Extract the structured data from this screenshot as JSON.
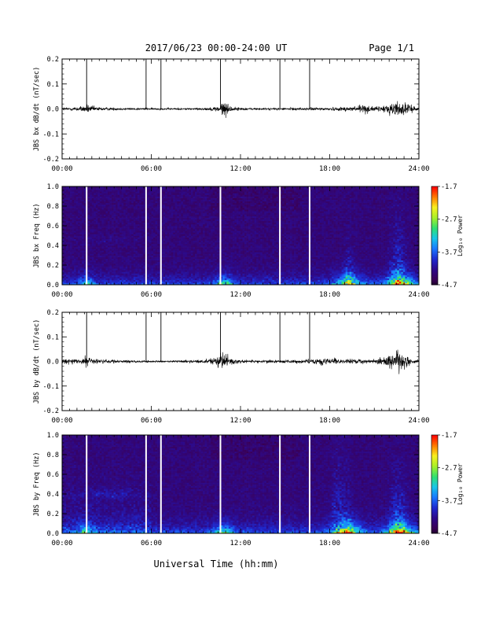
{
  "header": {
    "title": "2017/06/23  00:00-24:00 UT",
    "page": "Page 1/1"
  },
  "footer": {
    "xlabel": "Universal Time (hh:mm)"
  },
  "colors": {
    "trace": "#000000",
    "marker": "#000000",
    "gap": "#ffffff",
    "spectrogram_colormap": [
      "#000000",
      "#3a0055",
      "#2d0a8a",
      "#1f2ad0",
      "#1a78ff",
      "#18c6e8",
      "#30e070",
      "#a8f028",
      "#f8f020",
      "#ff7a00",
      "#ff0000"
    ]
  },
  "chart_data": [
    {
      "type": "line",
      "title": "",
      "ylabel": "JBS bx dB/dt (nT/sec)",
      "xlabel": "",
      "xlim": [
        0,
        24
      ],
      "ylim": [
        -0.2,
        0.2
      ],
      "x_ticks": [
        "00:00",
        "06:00",
        "12:00",
        "18:00",
        "24:00"
      ],
      "y_ticks": [
        "0.2",
        "0.1",
        "0.0",
        "-0.1",
        "-0.2"
      ],
      "marker_hours": [
        1.65,
        5.65,
        6.65,
        10.65,
        14.65,
        16.65
      ],
      "envelope": {
        "x": [
          0,
          0.5,
          1.0,
          1.5,
          1.65,
          1.9,
          2.5,
          3.5,
          4.5,
          5.5,
          6.5,
          7.5,
          8.5,
          9.5,
          10.3,
          10.65,
          10.9,
          11.2,
          11.6,
          12.5,
          13.5,
          14.5,
          15.5,
          16.5,
          17.5,
          18.5,
          19.0,
          19.5,
          20.0,
          20.5,
          21.0,
          21.5,
          22.0,
          22.3,
          22.7,
          23.2,
          23.6,
          24
        ],
        "amp": [
          0.006,
          0.006,
          0.008,
          0.012,
          0.018,
          0.012,
          0.007,
          0.005,
          0.004,
          0.004,
          0.003,
          0.004,
          0.004,
          0.004,
          0.008,
          0.02,
          0.034,
          0.015,
          0.007,
          0.004,
          0.004,
          0.004,
          0.005,
          0.005,
          0.006,
          0.006,
          0.008,
          0.012,
          0.018,
          0.016,
          0.008,
          0.01,
          0.022,
          0.03,
          0.028,
          0.02,
          0.01,
          0.006
        ]
      }
    },
    {
      "type": "heatmap",
      "title": "",
      "ylabel": "JBS bx Freq (Hz)",
      "xlabel": "",
      "xlim": [
        0,
        24
      ],
      "ylim": [
        0.0,
        1.0
      ],
      "x_ticks": [
        "00:00",
        "06:00",
        "12:00",
        "18:00",
        "24:00"
      ],
      "y_ticks": [
        "1.0",
        "0.8",
        "0.6",
        "0.4",
        "0.2",
        "0.0"
      ],
      "gap_hours": [
        1.65,
        5.65,
        6.65,
        10.65,
        14.65,
        16.65
      ],
      "colorbar": {
        "label": "Log₁₀ Power",
        "min": -4.7,
        "max": -1.7,
        "tick_labels": [
          "-1.7",
          "-2.7",
          "-3.7",
          "-4.7"
        ]
      }
    },
    {
      "type": "line",
      "title": "",
      "ylabel": "JBS by dB/dt (nT/sec)",
      "xlabel": "",
      "xlim": [
        0,
        24
      ],
      "ylim": [
        -0.2,
        0.2
      ],
      "x_ticks": [
        "00:00",
        "06:00",
        "12:00",
        "18:00",
        "24:00"
      ],
      "y_ticks": [
        "0.2",
        "0.1",
        "0.0",
        "-0.1",
        "-0.2"
      ],
      "marker_hours": [
        1.65,
        5.65,
        6.65,
        10.65,
        14.65,
        16.65
      ],
      "envelope": {
        "x": [
          0,
          0.5,
          1.0,
          1.5,
          1.65,
          2.0,
          2.5,
          3.5,
          4.5,
          5.5,
          6.5,
          7.5,
          8.5,
          9.5,
          10.0,
          10.3,
          10.65,
          10.9,
          11.3,
          11.8,
          12.5,
          13.5,
          14.5,
          15.5,
          16.5,
          17.0,
          17.5,
          18.0,
          18.5,
          19.0,
          19.5,
          20.0,
          20.5,
          21.0,
          21.5,
          22.0,
          22.4,
          22.8,
          23.2,
          23.6,
          24
        ],
        "amp": [
          0.008,
          0.009,
          0.01,
          0.014,
          0.024,
          0.014,
          0.008,
          0.006,
          0.005,
          0.004,
          0.003,
          0.004,
          0.005,
          0.006,
          0.01,
          0.014,
          0.03,
          0.035,
          0.018,
          0.008,
          0.006,
          0.006,
          0.006,
          0.007,
          0.008,
          0.01,
          0.012,
          0.012,
          0.01,
          0.009,
          0.009,
          0.01,
          0.008,
          0.008,
          0.012,
          0.03,
          0.045,
          0.038,
          0.02,
          0.01,
          0.008
        ]
      }
    },
    {
      "type": "heatmap",
      "title": "",
      "ylabel": "JBS by Freq (Hz)",
      "xlabel": "",
      "xlim": [
        0,
        24
      ],
      "ylim": [
        0.0,
        1.0
      ],
      "x_ticks": [
        "00:00",
        "06:00",
        "12:00",
        "18:00",
        "24:00"
      ],
      "y_ticks": [
        "1.0",
        "0.8",
        "0.6",
        "0.4",
        "0.2",
        "0.0"
      ],
      "gap_hours": [
        1.65,
        5.65,
        6.65,
        10.65,
        14.65,
        16.65
      ],
      "colorbar": {
        "label": "Log₁₀ Power",
        "min": -4.7,
        "max": -1.7,
        "tick_labels": [
          "-1.7",
          "-2.7",
          "-3.7",
          "-4.7"
        ]
      }
    }
  ]
}
